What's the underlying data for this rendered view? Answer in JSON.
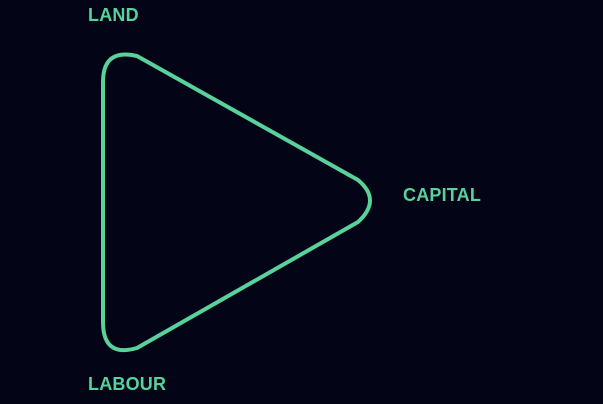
{
  "diagram": {
    "nodes": [
      {
        "id": "land",
        "label": "LAND"
      },
      {
        "id": "capital",
        "label": "CAPITAL"
      },
      {
        "id": "labour",
        "label": "LABOUR"
      }
    ],
    "shape": "rounded-triangle",
    "colors": {
      "background": "#040417",
      "accent": "#58d19a"
    }
  }
}
